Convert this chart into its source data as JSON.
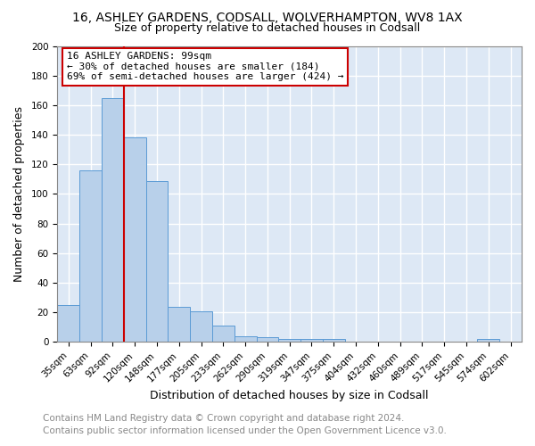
{
  "title": "16, ASHLEY GARDENS, CODSALL, WOLVERHAMPTON, WV8 1AX",
  "subtitle": "Size of property relative to detached houses in Codsall",
  "xlabel": "Distribution of detached houses by size in Codsall",
  "ylabel": "Number of detached properties",
  "bar_labels": [
    "35sqm",
    "63sqm",
    "92sqm",
    "120sqm",
    "148sqm",
    "177sqm",
    "205sqm",
    "233sqm",
    "262sqm",
    "290sqm",
    "319sqm",
    "347sqm",
    "375sqm",
    "404sqm",
    "432sqm",
    "460sqm",
    "489sqm",
    "517sqm",
    "545sqm",
    "574sqm",
    "602sqm"
  ],
  "bar_values": [
    25,
    116,
    165,
    138,
    109,
    24,
    21,
    11,
    4,
    3,
    2,
    2,
    2,
    0,
    0,
    0,
    0,
    0,
    0,
    2,
    0
  ],
  "bar_color": "#b8d0ea",
  "bar_edge_color": "#5b9bd5",
  "ylim": [
    0,
    200
  ],
  "yticks": [
    0,
    20,
    40,
    60,
    80,
    100,
    120,
    140,
    160,
    180,
    200
  ],
  "vline_x_idx": 2,
  "vline_color": "#cc0000",
  "annotation_title": "16 ASHLEY GARDENS: 99sqm",
  "annotation_line1": "← 30% of detached houses are smaller (184)",
  "annotation_line2": "69% of semi-detached houses are larger (424) →",
  "annotation_box_facecolor": "#ffffff",
  "annotation_box_edgecolor": "#cc0000",
  "footer_line1": "Contains HM Land Registry data © Crown copyright and database right 2024.",
  "footer_line2": "Contains public sector information licensed under the Open Government Licence v3.0.",
  "fig_facecolor": "#ffffff",
  "plot_facecolor": "#dde8f5",
  "grid_color": "#ffffff",
  "title_fontsize": 10,
  "subtitle_fontsize": 9,
  "axis_label_fontsize": 9,
  "tick_fontsize": 7.5,
  "annotation_fontsize": 8,
  "footer_fontsize": 7.5
}
